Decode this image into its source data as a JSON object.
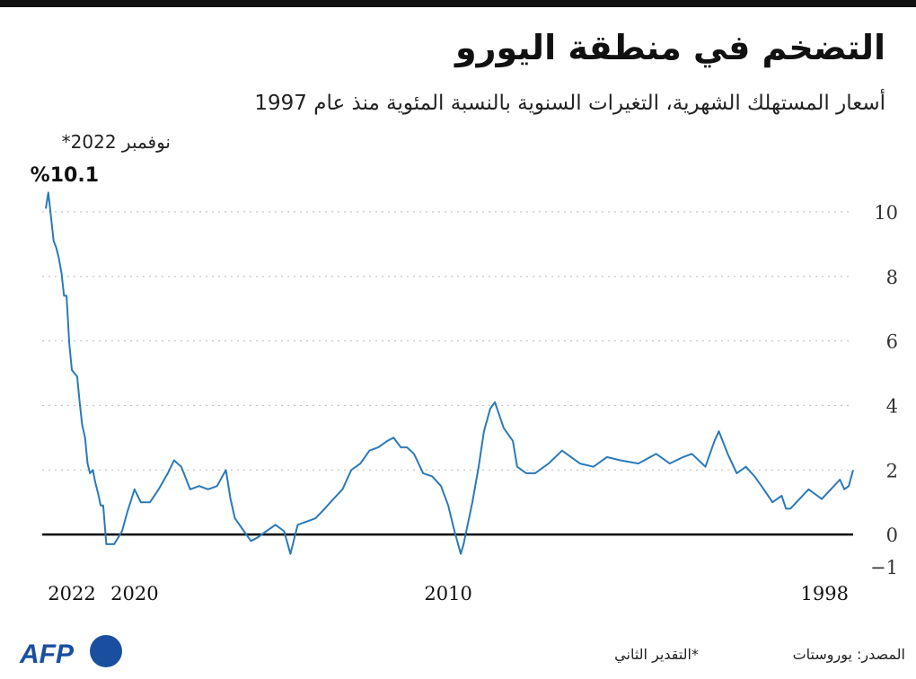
{
  "chart_data": {
    "type": "line",
    "title": "التضخم في منطقة اليورو",
    "subtitle": "أسعار المستهلك الشهرية، التغيرات السنوية بالنسبة المئوية منذ عام 1997",
    "annotations": [
      "نوفمبر 2022*",
      "%10.1"
    ],
    "source": "المصدر: يوروستات",
    "note": "*التقدير الثاني",
    "logo": "AFP",
    "color": "#2a7ab9",
    "x_reversed": true,
    "zero_line": true,
    "grid": true,
    "x": [
      1997.09,
      1997.23,
      1997.37,
      1997.51,
      1997.8,
      1998.09,
      1998.23,
      1998.51,
      1998.8,
      1999.09,
      1999.23,
      1999.37,
      1999.66,
      1999.94,
      2000.23,
      2000.51,
      2000.8,
      2001.09,
      2001.37,
      2001.51,
      2001.8,
      2002.23,
      2002.51,
      2002.94,
      2003.37,
      2003.94,
      2004.51,
      2004.94,
      2005.37,
      2005.8,
      2006.37,
      2006.8,
      2007.23,
      2007.51,
      2007.8,
      2007.94,
      2008.23,
      2008.51,
      2008.66,
      2008.86,
      2009.03,
      2009.23,
      2009.51,
      2009.6,
      2009.8,
      2010.0,
      2010.23,
      2010.51,
      2010.8,
      2011.09,
      2011.31,
      2011.51,
      2011.74,
      2011.94,
      2012.23,
      2012.51,
      2012.8,
      2013.09,
      2013.37,
      2013.66,
      2013.94,
      2014.23,
      2014.51,
      2014.8,
      2015.03,
      2015.23,
      2015.51,
      2015.8,
      2016.09,
      2016.29,
      2016.51,
      2016.8,
      2016.94,
      2017.09,
      2017.37,
      2017.66,
      2017.94,
      2018.23,
      2018.51,
      2018.74,
      2018.94,
      2019.23,
      2019.51,
      2019.8,
      2020.0,
      2020.23,
      2020.4,
      2020.65,
      2020.9,
      2021.0,
      2021.08,
      2021.17,
      2021.25,
      2021.33,
      2021.42,
      2021.5,
      2021.58,
      2021.67,
      2021.75,
      2021.83,
      2021.92,
      2022.0,
      2022.08,
      2022.17,
      2022.25,
      2022.33,
      2022.42,
      2022.5,
      2022.58,
      2022.67,
      2022.75,
      2022.83
    ],
    "values": [
      2.0,
      1.5,
      1.4,
      1.7,
      1.4,
      1.1,
      1.2,
      1.4,
      1.1,
      0.8,
      0.8,
      1.2,
      1.0,
      1.4,
      1.8,
      2.1,
      1.9,
      2.5,
      3.2,
      2.9,
      2.1,
      2.5,
      2.4,
      2.2,
      2.5,
      2.2,
      2.3,
      2.4,
      2.1,
      2.2,
      2.6,
      2.2,
      1.9,
      1.9,
      2.1,
      2.9,
      3.3,
      4.1,
      3.9,
      3.2,
      2.1,
      1.0,
      -0.3,
      -0.6,
      0.1,
      0.9,
      1.5,
      1.8,
      1.9,
      2.5,
      2.7,
      2.7,
      3.0,
      2.9,
      2.7,
      2.6,
      2.2,
      2.0,
      1.4,
      1.1,
      0.8,
      0.5,
      0.4,
      0.3,
      -0.6,
      0.1,
      0.3,
      0.1,
      -0.1,
      -0.2,
      0.1,
      0.5,
      1.1,
      2.0,
      1.5,
      1.4,
      1.5,
      1.4,
      2.1,
      2.3,
      1.9,
      1.4,
      1.0,
      1.0,
      1.4,
      0.7,
      0.1,
      -0.3,
      -0.3,
      0.9,
      0.9,
      1.3,
      1.6,
      2.0,
      1.9,
      2.2,
      3.0,
      3.4,
      4.1,
      4.9,
      5.0,
      5.1,
      5.9,
      7.4,
      7.4,
      8.1,
      8.6,
      8.9,
      9.1,
      9.9,
      10.6,
      10.1
    ],
    "xlim": [
      1997.09,
      2022.83
    ],
    "xticks": [
      2022,
      2020,
      2010,
      1998
    ],
    "ylim": [
      -1.25,
      11
    ],
    "yticks": [
      10,
      8,
      6,
      4,
      2,
      0,
      {
        "value": -1,
        "label": "−1"
      }
    ]
  }
}
